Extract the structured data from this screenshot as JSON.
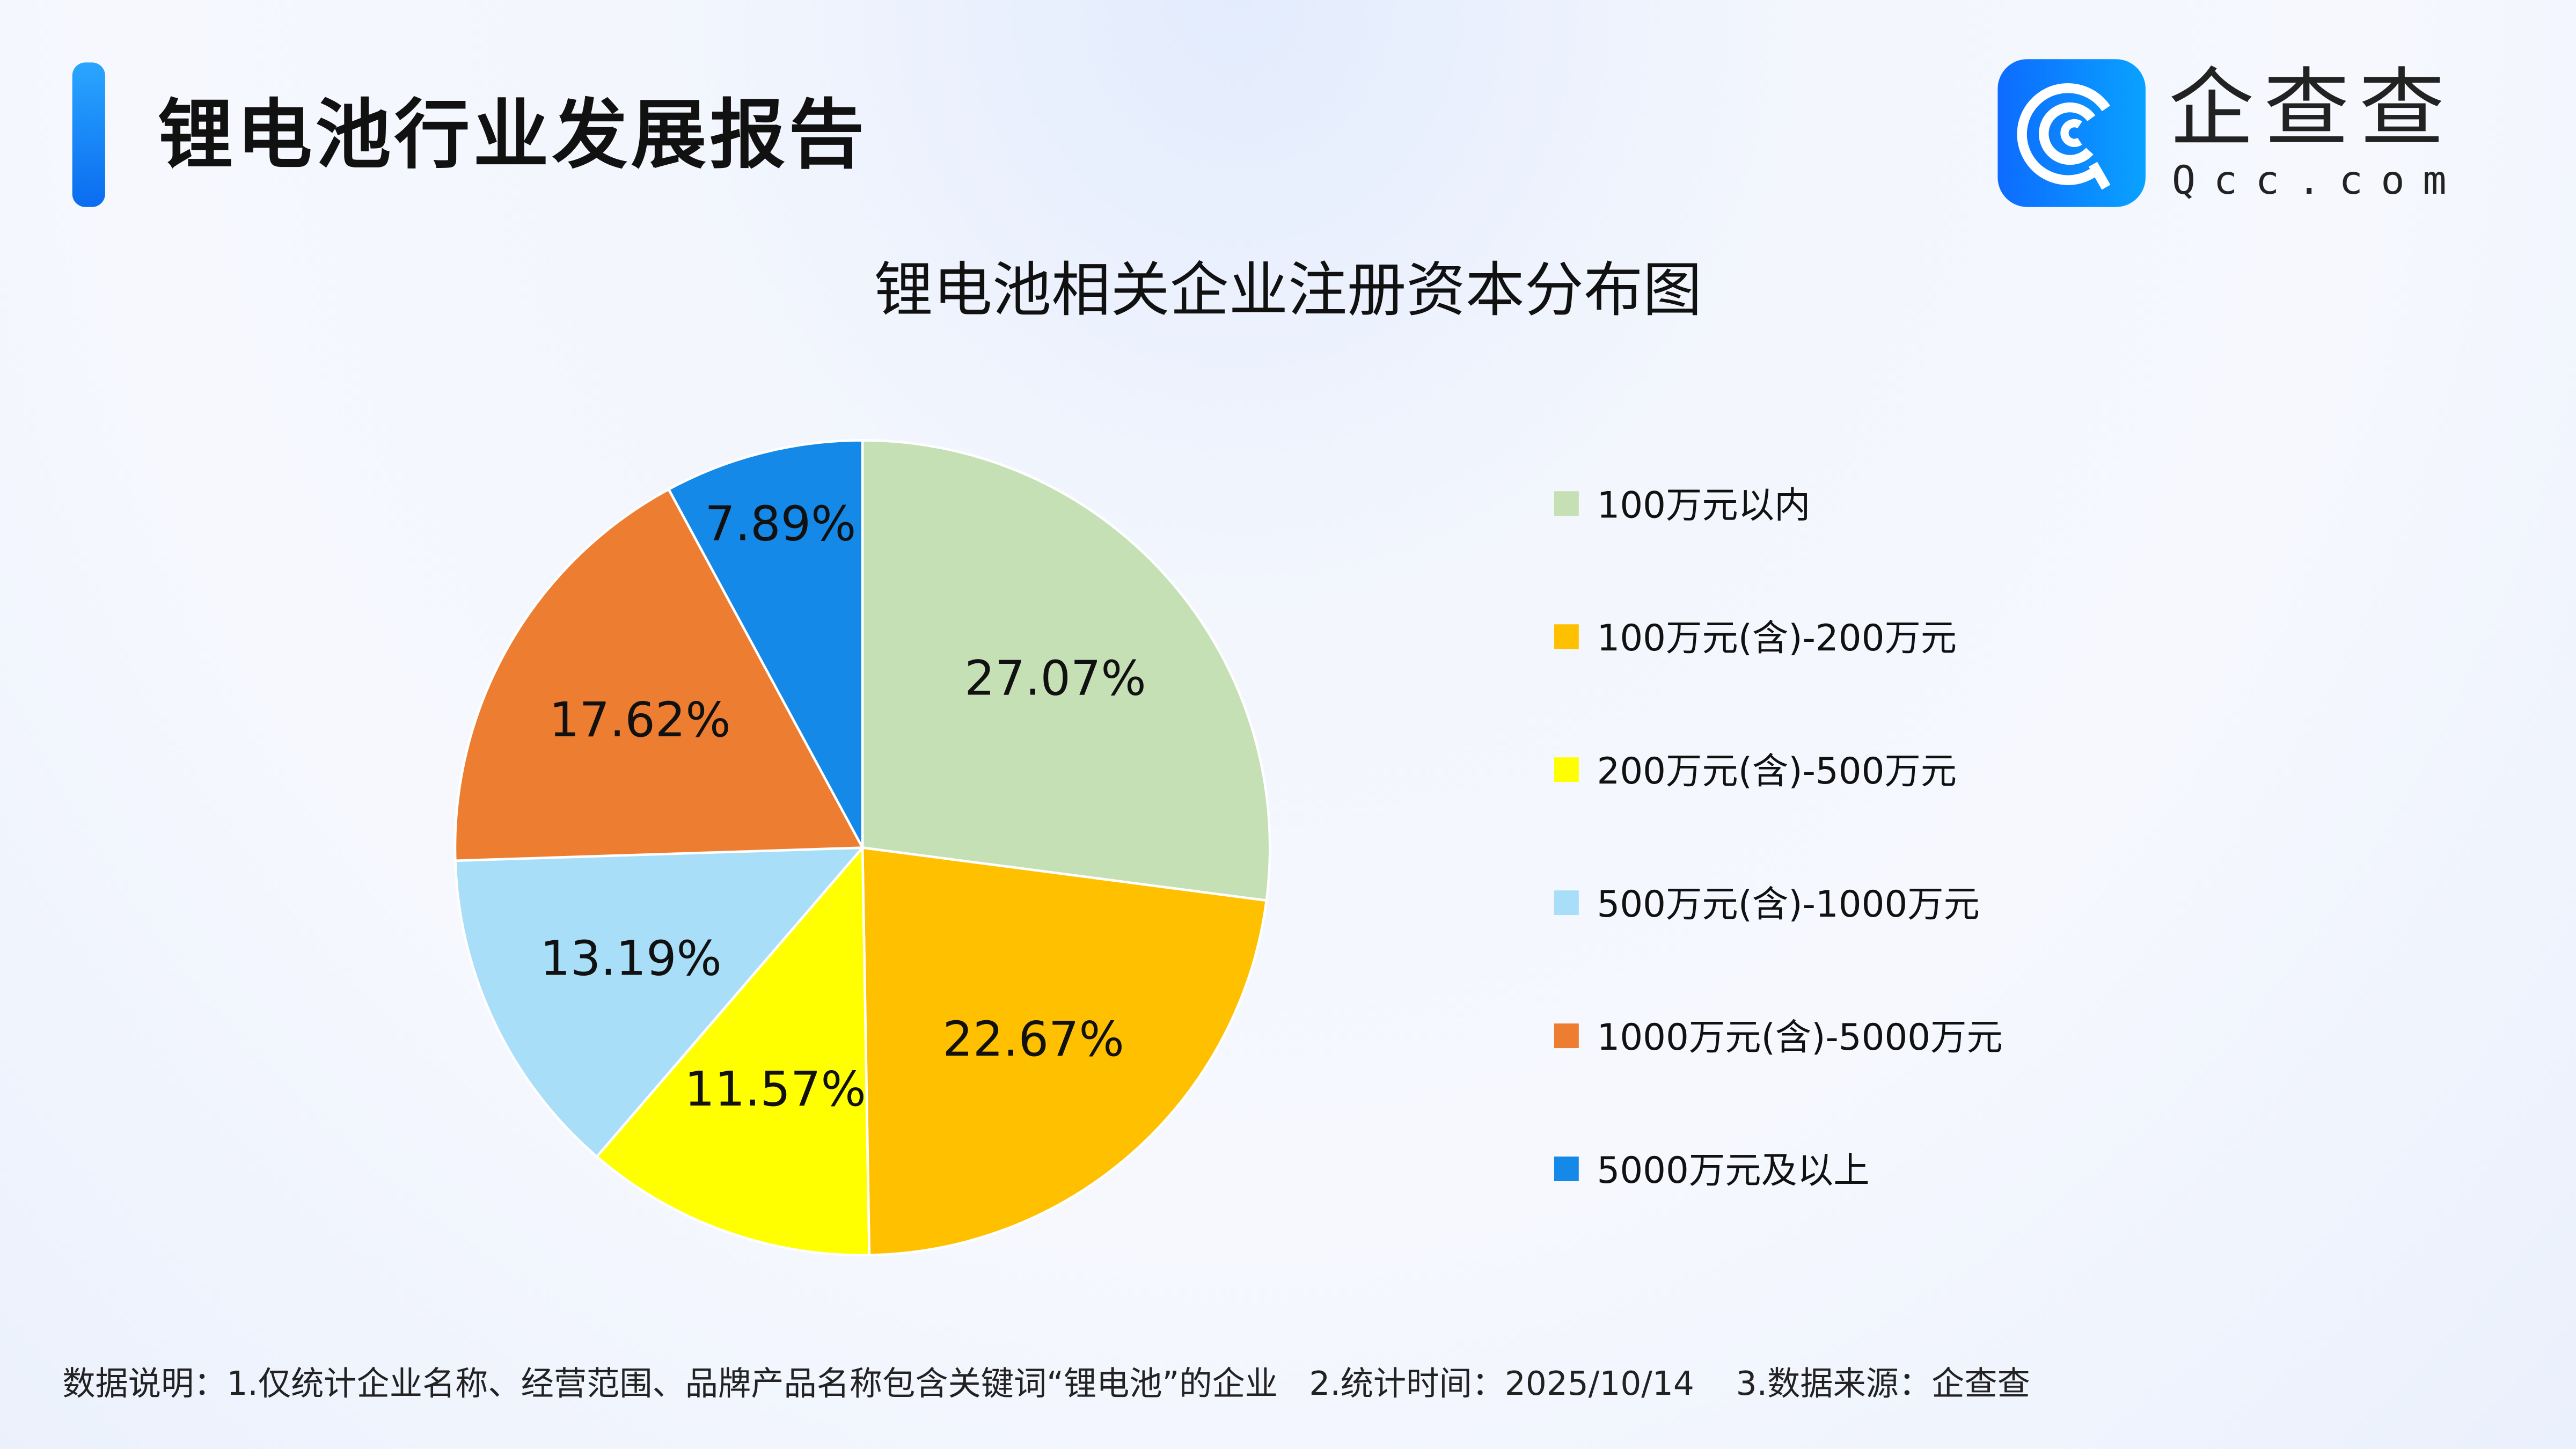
{
  "header": {
    "title": "锂电池行业发展报告"
  },
  "logo": {
    "cn": "企查查",
    "en": "Qcc.com"
  },
  "chart_data": {
    "type": "pie",
    "title": "锂电池相关企业注册资本分布图",
    "categories": [
      "100万元以内",
      "100万元(含)-200万元",
      "200万元(含)-500万元",
      "500万元(含)-1000万元",
      "1000万元(含)-5000万元",
      "5000万元及以上"
    ],
    "values": [
      27.07,
      22.67,
      11.57,
      13.19,
      17.62,
      7.89
    ],
    "labels": [
      "27.07%",
      "22.67%",
      "11.57%",
      "13.19%",
      "17.62%",
      "7.89%"
    ],
    "colors": [
      "#c5e0b4",
      "#ffc000",
      "#ffff00",
      "#a9def9",
      "#ed7d31",
      "#1589e8"
    ],
    "start_angle": "12 o'clock",
    "direction": "clockwise",
    "legend_position": "right"
  },
  "footer": {
    "note": "数据说明：1.仅统计企业名称、经营范围、品牌产品名称包含关键词“锂电池”的企业   2.统计时间：2025/10/14    3.数据来源：企查查"
  }
}
